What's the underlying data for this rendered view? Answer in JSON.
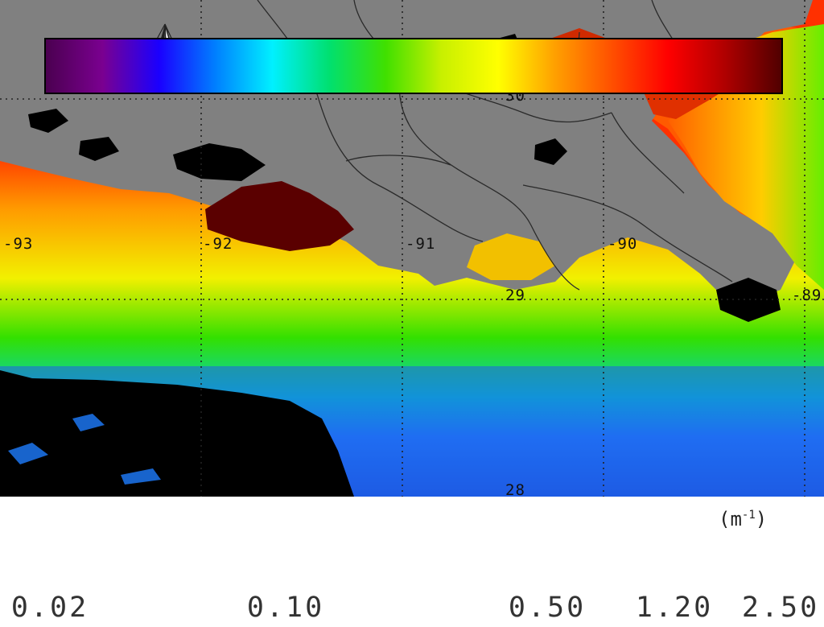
{
  "map": {
    "north_label": "N",
    "lon_labels": [
      "-93",
      "-92",
      "-91",
      "-90",
      "-89"
    ],
    "lat_labels": [
      "30",
      "29",
      "28"
    ],
    "ocean_gradient_colors": [
      "#ff3000",
      "#ff9a00",
      "#f2f000",
      "#33e000",
      "#00d0c8",
      "#1e7dff",
      "#1a55e0"
    ],
    "land_color": "#7f7f7f",
    "nodata_color": "#000000"
  },
  "legend": {
    "unit_base": "(m",
    "unit_exp": "-1",
    "unit_close": ")",
    "tick_labels": [
      "0.02",
      "0.10",
      "0.50",
      "1.20",
      "2.50"
    ],
    "colors": [
      "#4b0050",
      "#7a0090",
      "#1a00ff",
      "#0080ff",
      "#00f0ff",
      "#00e070",
      "#40e000",
      "#c8f000",
      "#ffff00",
      "#ffa000",
      "#ff5000",
      "#ff0000",
      "#b00000",
      "#500000"
    ]
  }
}
